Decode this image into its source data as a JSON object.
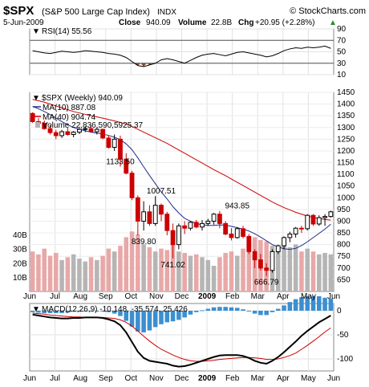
{
  "header": {
    "symbol": "$SPX",
    "name": "(S&P 500 Large Cap Index)",
    "exchange": "INDX",
    "brand": "© StockCharts.com",
    "date": "5-Jun-2009",
    "close_label": "Close",
    "close_value": "940.09",
    "volume_label": "Volume",
    "volume_value": "22.8B",
    "chg_label": "Chg",
    "chg_value": "+20.95 (+2.28%)",
    "chg_arrow": "▲"
  },
  "colors": {
    "up": "#000000",
    "down": "#cc0000",
    "ma10": "#1f2d8a",
    "ma40": "#cc0000",
    "rsi_fill": "#8a4a3a",
    "macd_hist": "#3b8fd0",
    "vol_up": "#b5b5b5",
    "vol_down": "#e8a8a8"
  },
  "chart_data": {
    "type": "stock-chart",
    "x_month_ticks": [
      "Jun",
      "Jul",
      "Aug",
      "Sep",
      "Oct",
      "Nov",
      "Dec",
      "2009",
      "Feb",
      "Mar",
      "Apr",
      "May",
      "Jun"
    ],
    "rsi": {
      "legend": "RSI(14) 55.56",
      "ylim": [
        10,
        90
      ],
      "ticks": [
        90,
        70,
        50,
        30,
        10
      ],
      "levels": [
        70,
        30
      ],
      "values": [
        52,
        50,
        48,
        47,
        49,
        51,
        50,
        49,
        50,
        52,
        51,
        50,
        49,
        47,
        46,
        44,
        40,
        33,
        26,
        24,
        27,
        30,
        36,
        38,
        36,
        33,
        30,
        35,
        40,
        44,
        46,
        47,
        45,
        43,
        46,
        49,
        50,
        48,
        46,
        44,
        41,
        43,
        47,
        52,
        55,
        57,
        56,
        58,
        57,
        58,
        60,
        56
      ]
    },
    "price": {
      "legend_symbol": "$SPX (Weekly) 940.09",
      "ma10_legend": "MA(10) 887.08",
      "ma40_legend": "MA(40) 904.74",
      "volume_legend": "Volume 22,836,590,5925.37",
      "ylim": [
        600,
        1450
      ],
      "ticks": [
        1450,
        1400,
        1350,
        1300,
        1250,
        1200,
        1150,
        1100,
        1050,
        1000,
        950,
        900,
        850,
        800,
        750,
        700,
        650
      ],
      "volume_ticks": [
        "40B",
        "30B",
        "20B",
        "10B"
      ],
      "volume_max": 45,
      "annotations": [
        {
          "text": "1133.50",
          "week": 15,
          "price": 1133.5
        },
        {
          "text": "1007.51",
          "week": 22,
          "price": 1007.51
        },
        {
          "text": "839.80",
          "week": 19,
          "price": 839.8
        },
        {
          "text": "741.02",
          "week": 24,
          "price": 741.02
        },
        {
          "text": "943.85",
          "week": 35,
          "price": 943.85
        },
        {
          "text": "666.79",
          "week": 40,
          "price": 666.79
        }
      ],
      "candles": [
        [
          1360,
          1365,
          1320,
          1325
        ],
        [
          1325,
          1340,
          1310,
          1318
        ],
        [
          1318,
          1330,
          1290,
          1295
        ],
        [
          1295,
          1310,
          1270,
          1278
        ],
        [
          1278,
          1290,
          1250,
          1265
        ],
        [
          1265,
          1290,
          1255,
          1282
        ],
        [
          1282,
          1300,
          1265,
          1270
        ],
        [
          1270,
          1285,
          1258,
          1280
        ],
        [
          1280,
          1298,
          1272,
          1292
        ],
        [
          1292,
          1305,
          1280,
          1295
        ],
        [
          1295,
          1310,
          1278,
          1282
        ],
        [
          1282,
          1300,
          1270,
          1292
        ],
        [
          1292,
          1295,
          1250,
          1255
        ],
        [
          1255,
          1265,
          1210,
          1215
        ],
        [
          1215,
          1270,
          1200,
          1250
        ],
        [
          1250,
          1265,
          1133,
          1165
        ],
        [
          1165,
          1190,
          1100,
          1105
        ],
        [
          1105,
          1115,
          990,
          1000
        ],
        [
          1000,
          1010,
          839,
          900
        ],
        [
          900,
          985,
          860,
          940
        ],
        [
          940,
          968,
          880,
          890
        ],
        [
          890,
          1007,
          880,
          968
        ],
        [
          968,
          975,
          900,
          930
        ],
        [
          930,
          940,
          840,
          860
        ],
        [
          860,
          890,
          741,
          800
        ],
        [
          800,
          890,
          780,
          880
        ],
        [
          880,
          900,
          845,
          870
        ],
        [
          870,
          900,
          860,
          895
        ],
        [
          895,
          905,
          870,
          875
        ],
        [
          875,
          905,
          860,
          890
        ],
        [
          890,
          910,
          880,
          900
        ],
        [
          900,
          935,
          885,
          930
        ],
        [
          930,
          943,
          870,
          890
        ],
        [
          890,
          900,
          840,
          845
        ],
        [
          845,
          870,
          818,
          830
        ],
        [
          830,
          875,
          825,
          868
        ],
        [
          868,
          880,
          826,
          835
        ],
        [
          835,
          845,
          760,
          770
        ],
        [
          770,
          780,
          700,
          735
        ],
        [
          735,
          760,
          690,
          700
        ],
        [
          700,
          720,
          666,
          690
        ],
        [
          690,
          780,
          680,
          770
        ],
        [
          770,
          800,
          760,
          795
        ],
        [
          795,
          835,
          780,
          830
        ],
        [
          830,
          855,
          810,
          845
        ],
        [
          845,
          875,
          830,
          870
        ],
        [
          870,
          880,
          850,
          868
        ],
        [
          868,
          930,
          860,
          925
        ],
        [
          925,
          930,
          880,
          888
        ],
        [
          888,
          925,
          880,
          915
        ],
        [
          915,
          930,
          880,
          920
        ],
        [
          920,
          945,
          915,
          940
        ]
      ],
      "volumes": [
        28,
        26,
        30,
        25,
        27,
        22,
        24,
        26,
        23,
        21,
        24,
        22,
        25,
        30,
        28,
        32,
        38,
        42,
        40,
        33,
        31,
        28,
        30,
        29,
        35,
        28,
        27,
        25,
        26,
        24,
        22,
        18,
        24,
        27,
        28,
        25,
        30,
        34,
        38,
        36,
        35,
        32,
        30,
        32,
        31,
        33,
        28,
        30,
        28,
        26,
        27,
        26
      ],
      "ma10": [
        1390,
        1380,
        1368,
        1355,
        1340,
        1325,
        1312,
        1300,
        1292,
        1286,
        1280,
        1276,
        1272,
        1266,
        1258,
        1248,
        1230,
        1205,
        1170,
        1132,
        1095,
        1060,
        1025,
        995,
        962,
        935,
        912,
        900,
        890,
        885,
        882,
        882,
        884,
        883,
        878,
        872,
        866,
        858,
        846,
        832,
        816,
        800,
        790,
        782,
        780,
        784,
        796,
        812,
        830,
        848,
        866,
        887
      ],
      "ma40": [
        1420,
        1414,
        1408,
        1400,
        1392,
        1384,
        1376,
        1368,
        1362,
        1356,
        1350,
        1345,
        1340,
        1334,
        1328,
        1322,
        1314,
        1304,
        1292,
        1280,
        1268,
        1256,
        1244,
        1232,
        1218,
        1204,
        1190,
        1176,
        1162,
        1148,
        1134,
        1120,
        1107,
        1094,
        1080,
        1066,
        1052,
        1038,
        1024,
        1010,
        996,
        982,
        970,
        958,
        948,
        938,
        930,
        922,
        916,
        911,
        907,
        904.74
      ]
    },
    "macd": {
      "legend": "MACD(12,26,9) -10.148, -35.574, 25.426",
      "ylim": [
        -125,
        15
      ],
      "ticks": [
        0,
        -50,
        -100
      ],
      "macd": [
        -8,
        -10,
        -12,
        -14,
        -15,
        -16,
        -16,
        -15,
        -15,
        -14,
        -14,
        -14,
        -15,
        -18,
        -22,
        -30,
        -45,
        -65,
        -85,
        -98,
        -104,
        -106,
        -108,
        -110,
        -114,
        -116,
        -115,
        -112,
        -108,
        -104,
        -100,
        -96,
        -93,
        -92,
        -92,
        -92,
        -94,
        -98,
        -104,
        -108,
        -110,
        -104,
        -96,
        -86,
        -75,
        -64,
        -52,
        -42,
        -33,
        -24,
        -17,
        -10
      ],
      "signal": [
        -5,
        -6,
        -7,
        -9,
        -10,
        -11,
        -12,
        -13,
        -13,
        -14,
        -14,
        -14,
        -14,
        -15,
        -16,
        -19,
        -24,
        -32,
        -42,
        -53,
        -63,
        -72,
        -80,
        -86,
        -92,
        -97,
        -101,
        -104,
        -105,
        -105,
        -104,
        -103,
        -101,
        -100,
        -99,
        -98,
        -97,
        -97,
        -98,
        -99,
        -101,
        -101,
        -100,
        -97,
        -93,
        -88,
        -80,
        -72,
        -63,
        -54,
        -44,
        -35.6
      ],
      "histogram": [
        -3,
        -4,
        -5,
        -5,
        -5,
        -5,
        -4,
        -2,
        -2,
        0,
        0,
        0,
        -1,
        -3,
        -6,
        -11,
        -21,
        -33,
        -43,
        -45,
        -41,
        -34,
        -28,
        -24,
        -22,
        -19,
        -14,
        -8,
        -3,
        1,
        4,
        7,
        8,
        8,
        7,
        6,
        3,
        -1,
        -6,
        -9,
        -9,
        -3,
        4,
        11,
        18,
        24,
        28,
        30,
        30,
        30,
        27,
        25.4
      ]
    }
  }
}
